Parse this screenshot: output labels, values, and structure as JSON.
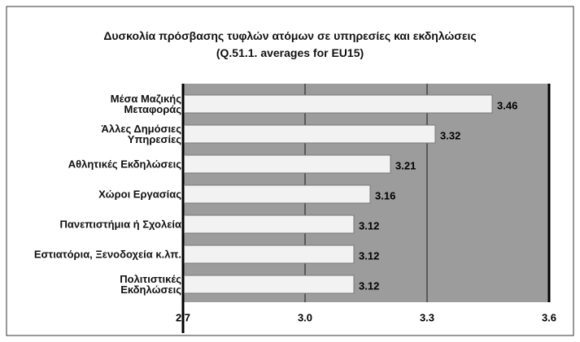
{
  "chart_data": {
    "type": "bar",
    "title": "Δυσκολία πρόσβασης τυφλών ατόμων σε υπηρεσίες και εκδηλώσεις",
    "subtitle": "(Q.51.1. averages for EU15)",
    "categories": [
      "Μέσα Μαζικής\nΜεταφοράς",
      "Άλλες Δημόσιες\nΥπηρεσίες",
      "Αθλητικές Εκδηλώσεις",
      "Χώροι Εργασίας",
      "Πανεπιστήμια ή Σχολεία",
      "Εστιατόρια, Ξενοδοχεία κ.λπ.",
      "Πολιτιστικές\nΕκδηλώσεις"
    ],
    "values": [
      3.46,
      3.32,
      3.21,
      3.16,
      3.12,
      3.12,
      3.12
    ],
    "color": "#f2f2f2",
    "xlim": [
      2.7,
      3.6
    ],
    "xticks": [
      2.7,
      {
        "value": 3,
        "label": "3.0"
      },
      3.3,
      3.6
    ],
    "grid": true
  }
}
